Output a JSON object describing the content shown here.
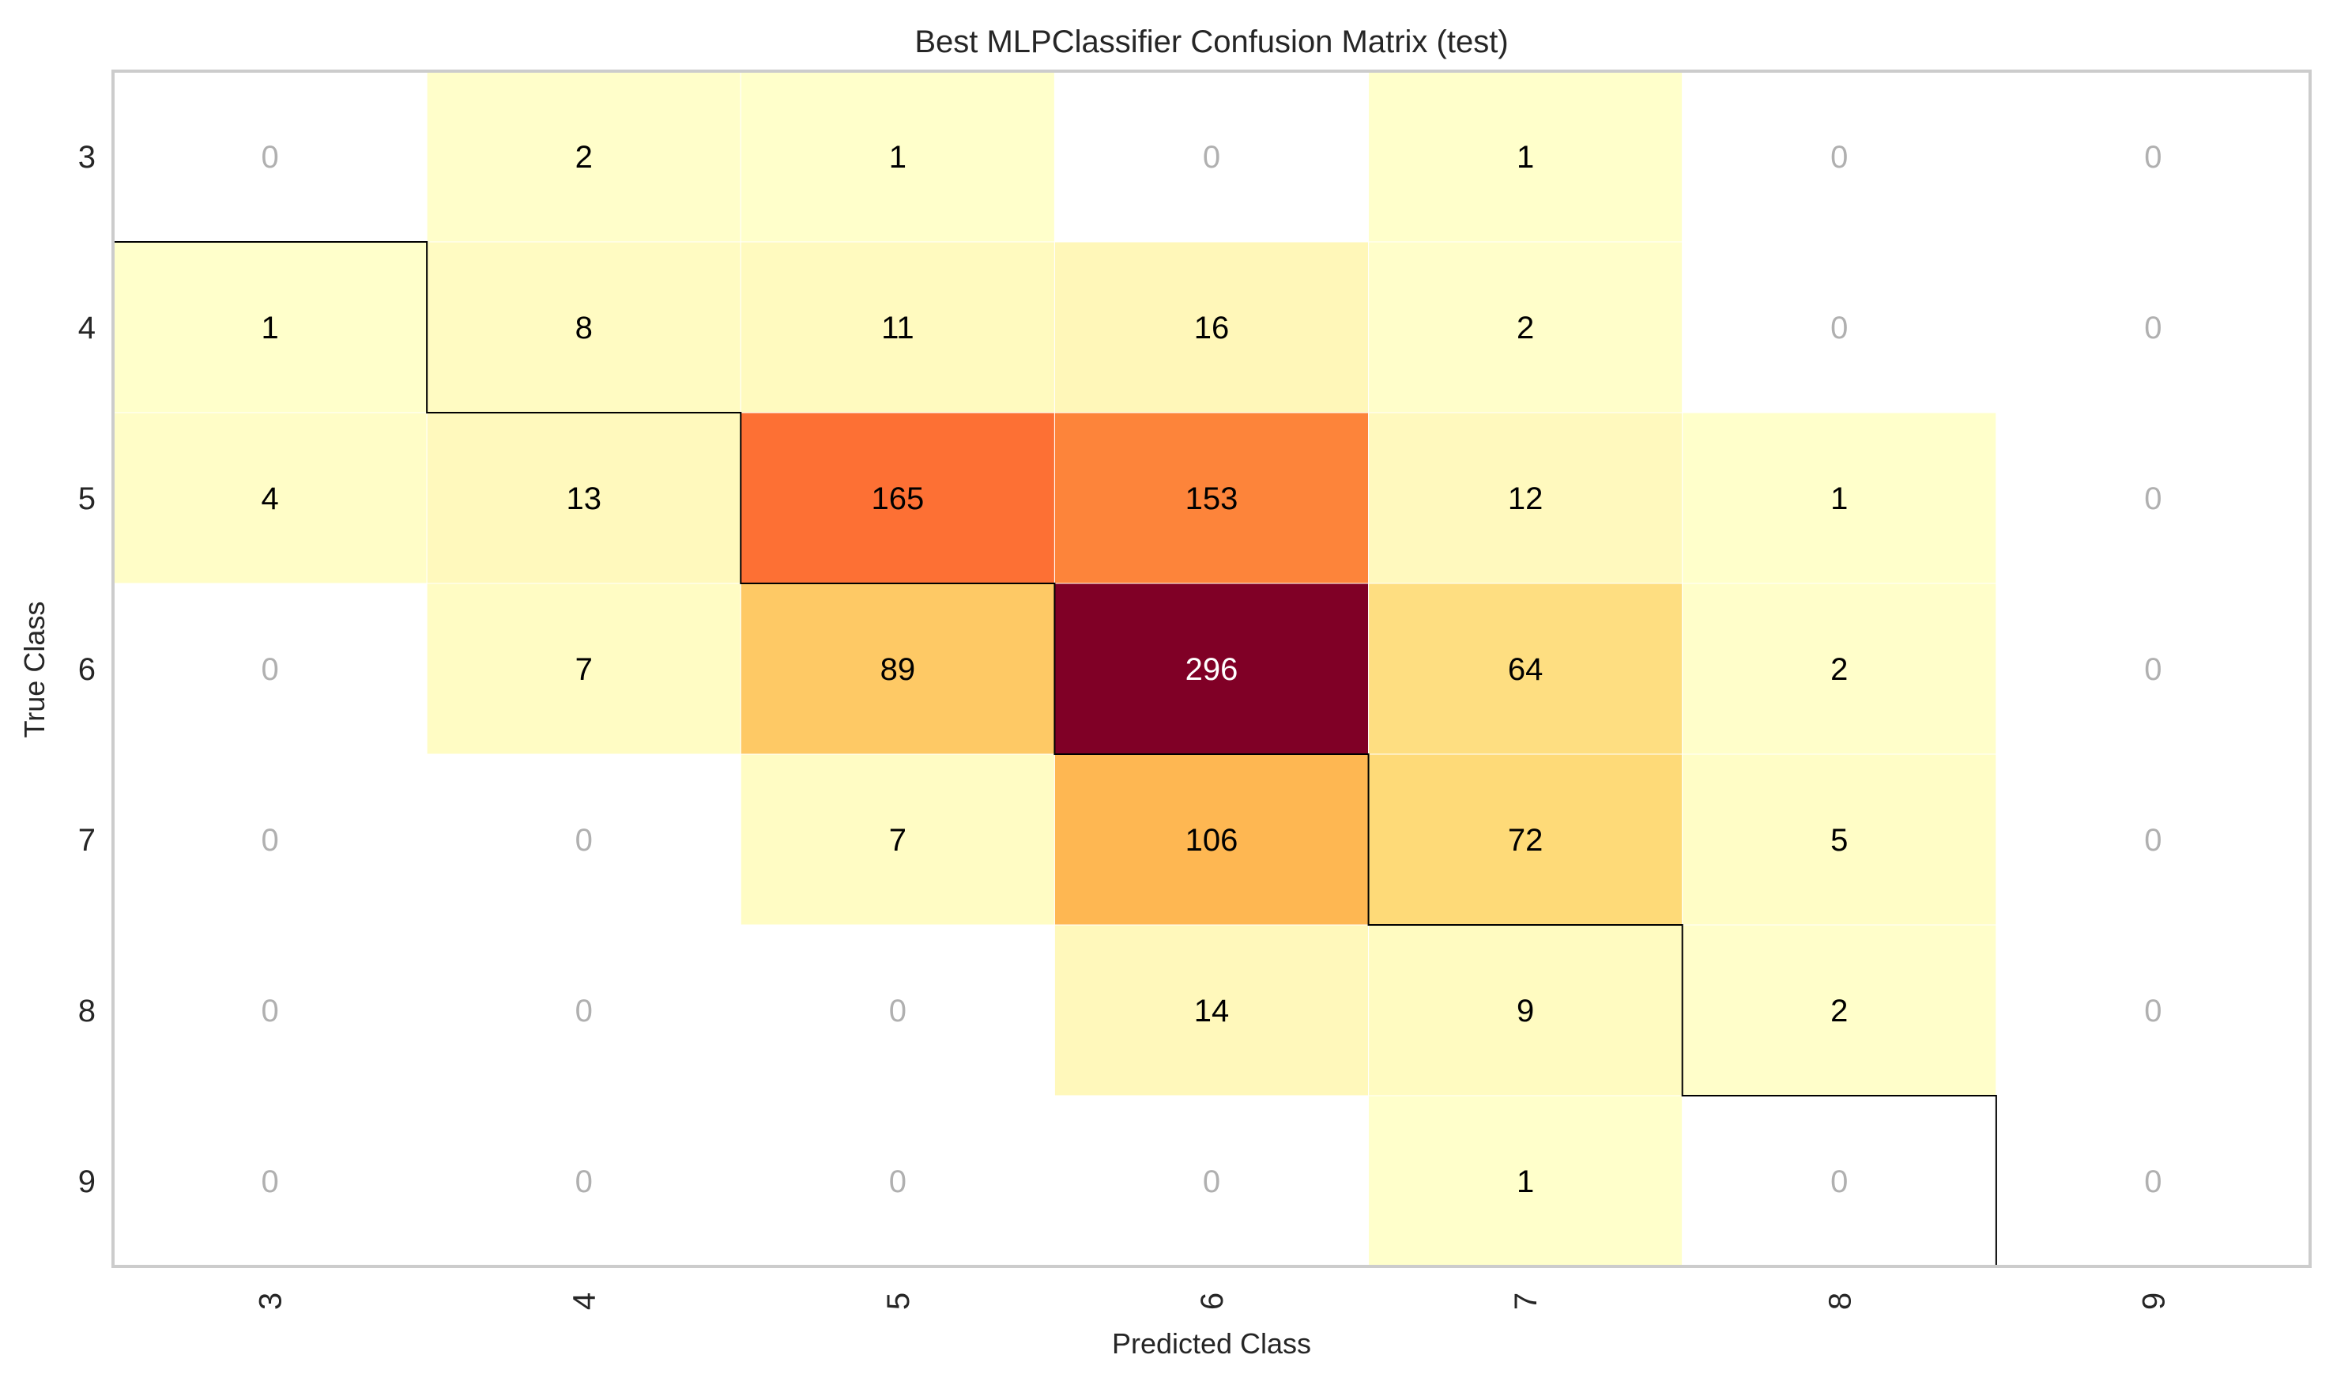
{
  "chart_data": {
    "type": "heatmap",
    "title": "Best MLPClassifier Confusion Matrix (test)",
    "xlabel": "Predicted Class",
    "ylabel": "True Class",
    "x_categories": [
      "3",
      "4",
      "5",
      "6",
      "7",
      "8",
      "9"
    ],
    "y_categories": [
      "3",
      "4",
      "5",
      "6",
      "7",
      "8",
      "9"
    ],
    "values": [
      [
        0,
        2,
        1,
        0,
        1,
        0,
        0
      ],
      [
        1,
        8,
        11,
        16,
        2,
        0,
        0
      ],
      [
        4,
        13,
        165,
        153,
        12,
        1,
        0
      ],
      [
        0,
        7,
        89,
        296,
        64,
        2,
        0
      ],
      [
        0,
        0,
        7,
        106,
        72,
        5,
        0
      ],
      [
        0,
        0,
        0,
        14,
        9,
        2,
        0
      ],
      [
        0,
        0,
        0,
        0,
        1,
        0,
        0
      ]
    ],
    "colormap": "YlOrRd",
    "zero_cells": "white",
    "diagonal_outline": true,
    "grid": false,
    "legend": "none",
    "colors": {
      "zero_label": "#b0b0b0",
      "dark_label": "#000000",
      "light_label": "#ffffff",
      "frame": "#cccccc",
      "outline": "#000000"
    }
  }
}
